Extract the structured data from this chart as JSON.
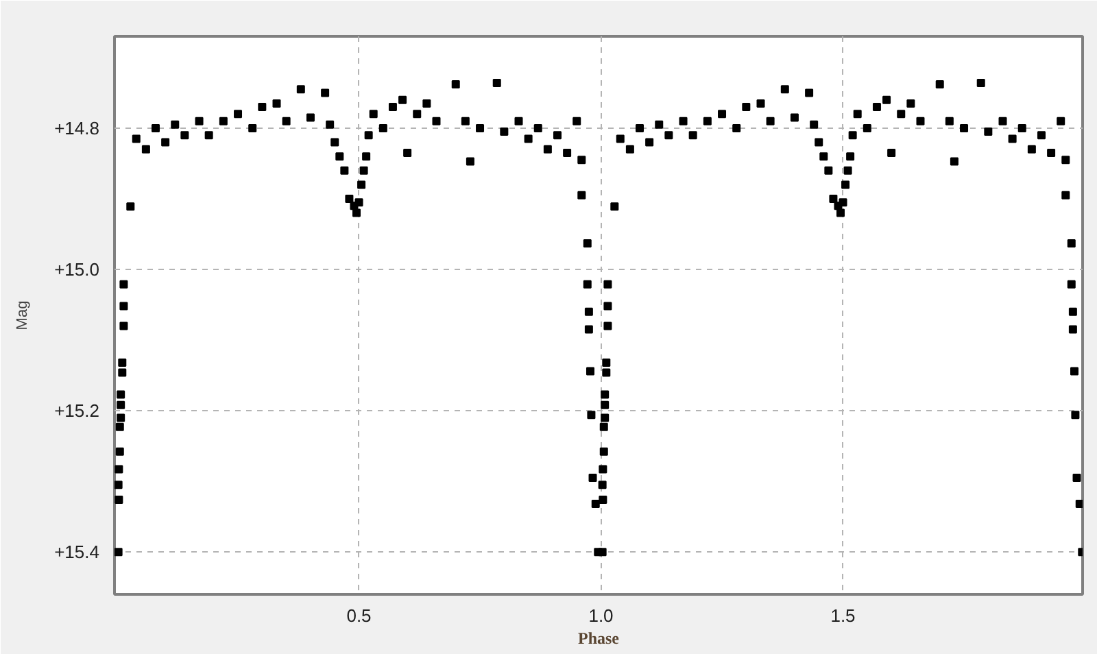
{
  "chart_data": {
    "type": "scatter",
    "xlabel": "Phase",
    "ylabel": "Mag",
    "xlim": [
      -0.005,
      1.995
    ],
    "ylim": [
      15.46,
      14.67
    ],
    "xticks": [
      {
        "value": 0.5,
        "label": "0.5"
      },
      {
        "value": 1.0,
        "label": "1.0"
      },
      {
        "value": 1.5,
        "label": "1.5"
      }
    ],
    "yticks": [
      {
        "value": 14.8,
        "label": "+14.8"
      },
      {
        "value": 15.0,
        "label": "+15.0"
      },
      {
        "value": 15.2,
        "label": "+15.2"
      },
      {
        "value": 15.4,
        "label": "+15.4"
      }
    ],
    "grid": true,
    "marker": "square",
    "series": [
      {
        "color": "#000000",
        "x": [
          0.003,
          0.003,
          0.004,
          0.004,
          0.006,
          0.006,
          0.008,
          0.008,
          0.008,
          0.011,
          0.011,
          0.014,
          0.014,
          0.014,
          0.028,
          0.04,
          0.06,
          0.08,
          0.1,
          0.12,
          0.14,
          0.17,
          0.19,
          0.22,
          0.25,
          0.28,
          0.3,
          0.33,
          0.35,
          0.38,
          0.4,
          0.43,
          0.44,
          0.45,
          0.46,
          0.47,
          0.48,
          0.49,
          0.495,
          0.5,
          0.505,
          0.51,
          0.515,
          0.52,
          0.53,
          0.55,
          0.57,
          0.59,
          0.6,
          0.62,
          0.64,
          0.66,
          0.7,
          0.72,
          0.73,
          0.75,
          0.785,
          0.8,
          0.83,
          0.85,
          0.87,
          0.89,
          0.91,
          0.93,
          0.95,
          0.96,
          0.96,
          0.972,
          0.972,
          0.975,
          0.975,
          0.978,
          0.98,
          0.983,
          0.989,
          0.994,
          1.003,
          1.003,
          1.004,
          1.004,
          1.006,
          1.006,
          1.008,
          1.008,
          1.008,
          1.011,
          1.011,
          1.014,
          1.014,
          1.014,
          1.028,
          1.04,
          1.06,
          1.08,
          1.1,
          1.12,
          1.14,
          1.17,
          1.19,
          1.22,
          1.25,
          1.28,
          1.3,
          1.33,
          1.35,
          1.38,
          1.4,
          1.43,
          1.44,
          1.45,
          1.46,
          1.47,
          1.48,
          1.49,
          1.495,
          1.5,
          1.505,
          1.51,
          1.515,
          1.52,
          1.53,
          1.55,
          1.57,
          1.59,
          1.6,
          1.62,
          1.64,
          1.66,
          1.7,
          1.72,
          1.73,
          1.75,
          1.785,
          1.8,
          1.83,
          1.85,
          1.87,
          1.89,
          1.91,
          1.93,
          1.95,
          1.96,
          1.96,
          1.972,
          1.972,
          1.975,
          1.975,
          1.978,
          1.98,
          1.983,
          1.989,
          1.994
        ],
        "values": [
          15.4,
          15.305,
          15.326,
          15.283,
          15.258,
          15.223,
          15.21,
          15.192,
          15.177,
          15.146,
          15.132,
          15.08,
          15.052,
          15.021,
          14.911,
          14.815,
          14.83,
          14.8,
          14.82,
          14.795,
          14.81,
          14.79,
          14.81,
          14.79,
          14.78,
          14.8,
          14.77,
          14.765,
          14.79,
          14.745,
          14.785,
          14.75,
          14.795,
          14.82,
          14.84,
          14.86,
          14.9,
          14.91,
          14.92,
          14.905,
          14.88,
          14.86,
          14.84,
          14.81,
          14.78,
          14.8,
          14.77,
          14.76,
          14.835,
          14.78,
          14.765,
          14.79,
          14.738,
          14.79,
          14.847,
          14.8,
          14.736,
          14.805,
          14.79,
          14.815,
          14.8,
          14.83,
          14.81,
          14.835,
          14.79,
          14.845,
          14.895,
          14.963,
          15.021,
          15.06,
          15.085,
          15.144,
          15.206,
          15.295,
          15.332,
          15.4,
          15.4,
          15.305,
          15.326,
          15.283,
          15.258,
          15.223,
          15.21,
          15.192,
          15.177,
          15.146,
          15.132,
          15.08,
          15.052,
          15.021,
          14.911,
          14.815,
          14.83,
          14.8,
          14.82,
          14.795,
          14.81,
          14.79,
          14.81,
          14.79,
          14.78,
          14.8,
          14.77,
          14.765,
          14.79,
          14.745,
          14.785,
          14.75,
          14.795,
          14.82,
          14.84,
          14.86,
          14.9,
          14.91,
          14.92,
          14.905,
          14.88,
          14.86,
          14.84,
          14.81,
          14.78,
          14.8,
          14.77,
          14.76,
          14.835,
          14.78,
          14.765,
          14.79,
          14.738,
          14.79,
          14.847,
          14.8,
          14.736,
          14.805,
          14.79,
          14.815,
          14.8,
          14.83,
          14.81,
          14.835,
          14.79,
          14.845,
          14.895,
          14.963,
          15.021,
          15.06,
          15.085,
          15.144,
          15.206,
          15.295,
          15.332,
          15.4
        ]
      }
    ]
  }
}
